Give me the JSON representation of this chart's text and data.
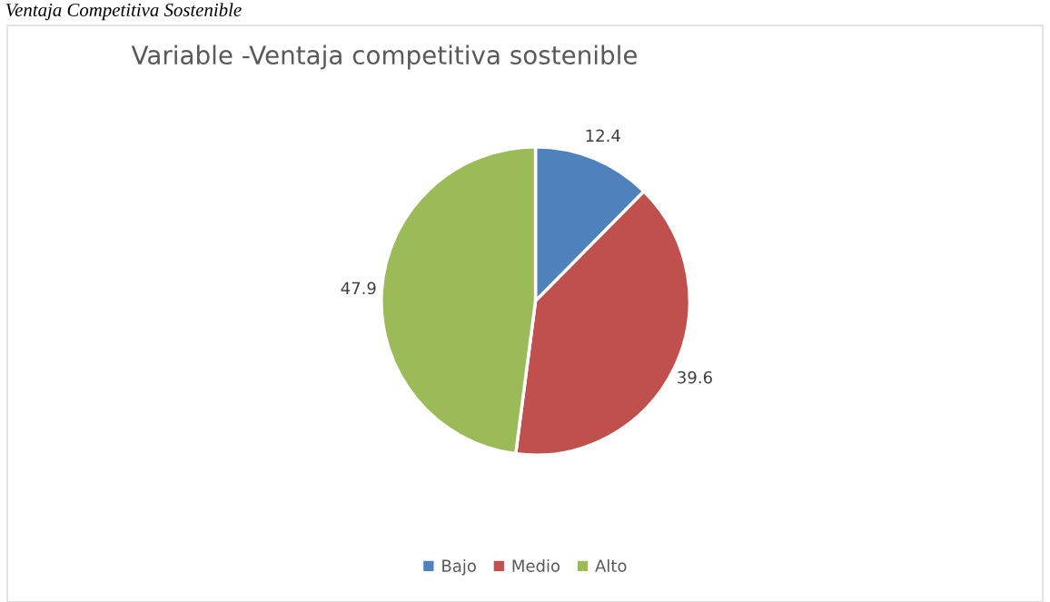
{
  "chart_data": {
    "type": "pie",
    "title": "Variable -Ventaja competitiva sostenible",
    "annotations": [
      "Ventaja Competitiva Sostenible"
    ],
    "categories": [
      "Bajo",
      "Medio",
      "Alto"
    ],
    "values": [
      12.4,
      39.6,
      47.9
    ],
    "colors": [
      "#4f81bd",
      "#c0504d",
      "#9bbb59"
    ],
    "data_labels": true,
    "legend": "bottom"
  }
}
